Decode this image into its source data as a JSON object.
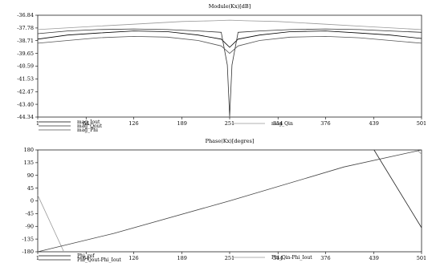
{
  "chart_data": [
    {
      "type": "line",
      "title": "Module(Kx)[dB]",
      "xlabel": "",
      "ylabel": "",
      "xlim": [
        1,
        501
      ],
      "ylim": [
        -44.34,
        -36.84
      ],
      "x_ticks": [
        1,
        64,
        126,
        189,
        251,
        314,
        376,
        439,
        501
      ],
      "y_ticks": [
        -36.84,
        -37.78,
        -38.71,
        -39.65,
        -40.59,
        -41.53,
        -42.47,
        -43.4,
        -44.34
      ],
      "x_tick_labels": [
        "1",
        "64",
        "126",
        "189",
        "251",
        "314",
        "376",
        "439",
        "501"
      ],
      "y_tick_labels": [
        "-36.84",
        "-37.78",
        "-38.71",
        "-39.65",
        "-40.59",
        "-41.53",
        "-42.47",
        "-43.40",
        "-44.34"
      ],
      "grid": false,
      "legend": "bottom-left",
      "series": [
        {
          "name": "mag_Iout",
          "color": "#000000",
          "x": [
            1,
            40,
            80,
            126,
            170,
            210,
            240,
            251,
            262,
            290,
            330,
            376,
            420,
            460,
            501
          ],
          "values": [
            -38.6,
            -38.3,
            -38.15,
            -38.0,
            -38.05,
            -38.3,
            -38.6,
            -39.2,
            -38.6,
            -38.3,
            -38.05,
            -38.0,
            -38.15,
            -38.3,
            -38.55
          ]
        },
        {
          "name": "mag_Qout",
          "color": "#333333",
          "x": [
            1,
            40,
            80,
            126,
            170,
            210,
            240,
            248,
            251,
            254,
            262,
            290,
            330,
            376,
            420,
            460,
            501
          ],
          "values": [
            -38.2,
            -38.0,
            -37.9,
            -37.85,
            -37.9,
            -38.0,
            -38.1,
            -40.5,
            -44.3,
            -40.5,
            -38.1,
            -38.0,
            -37.9,
            -37.85,
            -37.9,
            -38.0,
            -38.1
          ]
        },
        {
          "name": "mag_Phi",
          "color": "#555555",
          "x": [
            1,
            40,
            80,
            126,
            170,
            210,
            240,
            251,
            262,
            290,
            330,
            376,
            420,
            460,
            501
          ],
          "values": [
            -38.9,
            -38.7,
            -38.5,
            -38.4,
            -38.45,
            -38.7,
            -39.1,
            -39.65,
            -39.1,
            -38.7,
            -38.45,
            -38.4,
            -38.5,
            -38.7,
            -38.9
          ]
        },
        {
          "name": "mag_Qin",
          "color": "#999999",
          "x": [
            1,
            60,
            126,
            189,
            230,
            251,
            272,
            314,
            376,
            439,
            501
          ],
          "values": [
            -37.9,
            -37.7,
            -37.5,
            -37.3,
            -37.25,
            -37.2,
            -37.25,
            -37.3,
            -37.5,
            -37.7,
            -37.9
          ]
        }
      ]
    },
    {
      "type": "line",
      "title": "Phase(Kx)[degres]",
      "xlabel": "",
      "ylabel": "",
      "xlim": [
        1,
        501
      ],
      "ylim": [
        -180,
        180
      ],
      "x_ticks": [
        1,
        64,
        126,
        189,
        251,
        314,
        376,
        439,
        501
      ],
      "y_ticks": [
        180,
        135,
        90,
        45,
        0,
        -45,
        -90,
        -135,
        -180
      ],
      "x_tick_labels": [
        "1",
        "64",
        "126",
        "189",
        "251",
        "314",
        "376",
        "439",
        "501"
      ],
      "y_tick_labels": [
        "180",
        "135",
        "90",
        "45",
        "0",
        "-45",
        "-90",
        "-135",
        "-180"
      ],
      "grid": false,
      "legend": "bottom-left",
      "series": [
        {
          "name": "Phi_ref",
          "color": "#000000",
          "x": [
            1,
            20,
            20.1,
            62,
            62.1,
            126,
            126.1,
            183,
            183.1,
            251,
            251.1,
            308,
            308.1,
            376,
            376.1,
            433,
            433.1,
            501
          ],
          "values": [
            -180,
            180,
            -180,
            180,
            -180,
            180,
            -180,
            180,
            -180,
            180,
            -180,
            180,
            -180,
            180,
            -180,
            180,
            -180,
            165
          ]
        },
        {
          "name": "Phi_Qout-Phi_Iout",
          "color": "#222222",
          "x": [
            1,
            70,
            70.1,
            165,
            165.1,
            254,
            254.1,
            345,
            345.1,
            439,
            439.1,
            501
          ],
          "values": [
            130,
            -180,
            180,
            -180,
            180,
            -180,
            180,
            -180,
            180,
            -180,
            180,
            -95
          ]
        },
        {
          "name": "Phi_Qin-Phi_Iout",
          "color": "#999999",
          "x": [
            1,
            35,
            35.1,
            150,
            150.1,
            264,
            264.1,
            380,
            380.1,
            495,
            495.1,
            501
          ],
          "values": [
            20,
            -180,
            180,
            -180,
            180,
            -180,
            180,
            -180,
            180,
            -180,
            180,
            165
          ]
        },
        {
          "name": "",
          "color": "#444444",
          "x": [
            1,
            100,
            251,
            400,
            501
          ],
          "values": [
            -180,
            -115,
            0,
            120,
            180
          ]
        }
      ]
    }
  ]
}
